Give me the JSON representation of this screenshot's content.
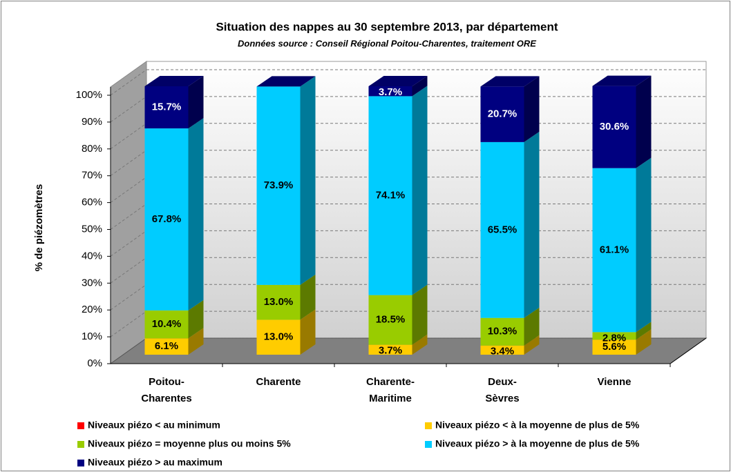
{
  "chart_data": {
    "type": "stacked_bar_3d",
    "title": "Situation des nappes au 30 septembre 2013, par département",
    "subtitle": "Données source : Conseil Régional Poitou-Charentes, traitement  ORE",
    "y_label": "% de piézomètres",
    "categories": [
      "Poitou-Charentes",
      "Charente",
      "Charente-Maritime",
      "Deux-Sèvres",
      "Vienne"
    ],
    "ylim": [
      0,
      100
    ],
    "yticks": [
      {
        "value": 0,
        "label": "0%"
      },
      {
        "value": 10,
        "label": "10%"
      },
      {
        "value": 20,
        "label": "20%"
      },
      {
        "value": 30,
        "label": "30%"
      },
      {
        "value": 40,
        "label": "40%"
      },
      {
        "value": 50,
        "label": "50%"
      },
      {
        "value": 60,
        "label": "60%"
      },
      {
        "value": 70,
        "label": "70%"
      },
      {
        "value": 80,
        "label": "80%"
      },
      {
        "value": 90,
        "label": "90%"
      },
      {
        "value": 100,
        "label": "100%"
      }
    ],
    "grid": true,
    "legend": "bottom",
    "series": [
      {
        "name": "Niveaux piézo < au minimum",
        "color": "#ff0000",
        "values": [
          0,
          0,
          0,
          0,
          0
        ]
      },
      {
        "name": "Niveaux piézo < à la moyenne de plus de 5%",
        "color": "#ffcc00",
        "values": [
          6.1,
          13.0,
          3.7,
          3.4,
          5.6
        ],
        "value_labels": [
          "6.1%",
          "13.0%",
          "3.7%",
          "3.4%",
          "5.6%"
        ]
      },
      {
        "name": "Niveaux piézo = moyenne plus ou moins 5%",
        "color": "#99cc00",
        "values": [
          10.4,
          13.0,
          18.5,
          10.3,
          2.8
        ],
        "value_labels": [
          "10.4%",
          "13.0%",
          "18.5%",
          "10.3%",
          "2.8%"
        ]
      },
      {
        "name": "Niveaux piézo > à la moyenne de plus de 5%",
        "color": "#00ccff",
        "values": [
          67.8,
          73.9,
          74.1,
          65.5,
          61.1
        ],
        "value_labels": [
          "67.8%",
          "73.9%",
          "74.1%",
          "65.5%",
          "61.1%"
        ]
      },
      {
        "name": "Niveaux piézo > au maximum",
        "color": "#000080",
        "values": [
          15.7,
          0,
          3.7,
          20.7,
          30.6
        ],
        "value_labels": [
          "15.7%",
          null,
          "3.7%",
          "20.7%",
          "30.6%"
        ]
      }
    ]
  }
}
